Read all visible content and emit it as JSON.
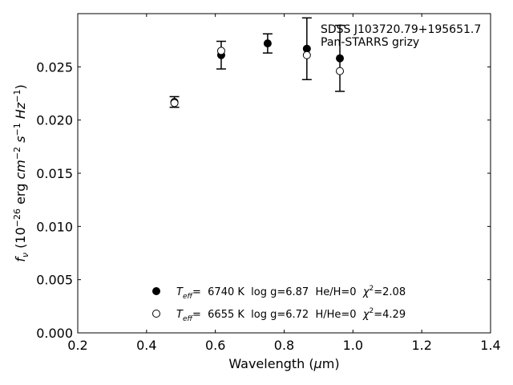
{
  "chart_data": {
    "type": "scatter",
    "xlabel": "Wavelength (μm)",
    "ylabel": "f_ν (10^-26 erg cm^-2 s^-1 Hz^-1)",
    "xlim": [
      0.2,
      1.4
    ],
    "ylim": [
      0.0,
      0.03
    ],
    "x_ticks": [
      0.2,
      0.4,
      0.6,
      0.8,
      1.0,
      1.2,
      1.4
    ],
    "x_tick_labels": [
      "0.2",
      "0.4",
      "0.6",
      "0.8",
      "1.0",
      "1.2",
      "1.4"
    ],
    "y_ticks": [
      0.0,
      0.005,
      0.01,
      0.015,
      0.02,
      0.025
    ],
    "y_tick_labels": [
      "0.000",
      "0.005",
      "0.010",
      "0.015",
      "0.020",
      "0.025"
    ],
    "grid": false,
    "annotation": {
      "line1": "SDSS J103720.79+195651.7",
      "line2": "Pan-STARRS grizy"
    },
    "observed": {
      "x": [
        0.481,
        0.617,
        0.752,
        0.866,
        0.962
      ],
      "y": [
        0.0217,
        0.0261,
        0.0272,
        0.0267,
        0.0258
      ],
      "yerr": [
        0.0005,
        0.0013,
        0.0009,
        0.0029,
        0.0031
      ]
    },
    "model": {
      "x": [
        0.481,
        0.617,
        0.866,
        0.962
      ],
      "y": [
        0.0216,
        0.0265,
        0.0261,
        0.0246
      ]
    },
    "legend": {
      "placement": "lower-center",
      "entries": [
        {
          "marker": "filled-circle",
          "t_label": "T",
          "t_sub": "eff",
          "text": "=  6740 K  log g=6.87  He/H=0  ",
          "chi_label": "χ",
          "chi_sup": "2",
          "chi_value": "=2.08"
        },
        {
          "marker": "open-circle",
          "t_label": "T",
          "t_sub": "eff",
          "text": "=  6655 K  log g=6.72  H/He=0  ",
          "chi_label": "χ",
          "chi_sup": "2",
          "chi_value": "=4.29"
        }
      ]
    }
  }
}
